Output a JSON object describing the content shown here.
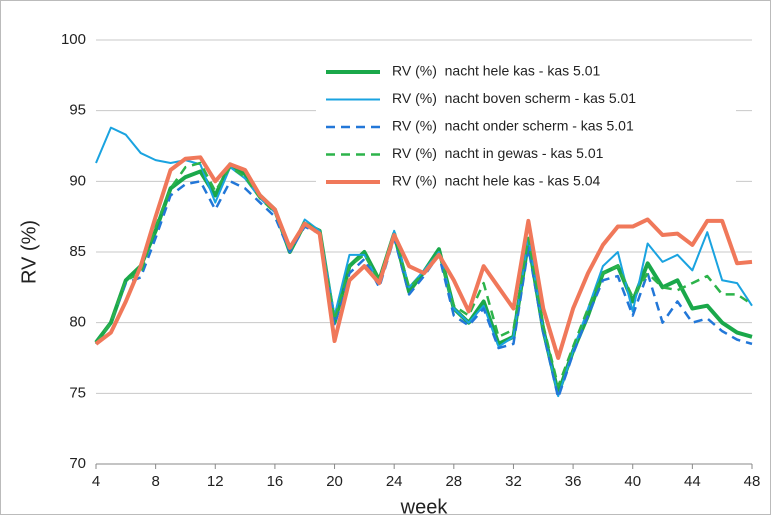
{
  "chart_data": {
    "type": "line",
    "ylabel": "RV (%)",
    "xlabel": "week",
    "x": [
      4,
      5,
      6,
      7,
      8,
      9,
      10,
      11,
      12,
      13,
      14,
      15,
      16,
      17,
      18,
      19,
      20,
      21,
      22,
      23,
      24,
      25,
      26,
      27,
      28,
      29,
      30,
      31,
      32,
      33,
      34,
      35,
      36,
      37,
      38,
      39,
      40,
      41,
      42,
      43,
      44,
      45,
      46,
      47,
      48
    ],
    "xlim": [
      4,
      48
    ],
    "xticks": [
      4,
      8,
      12,
      16,
      20,
      24,
      28,
      32,
      36,
      40,
      44,
      48
    ],
    "ylim": [
      70,
      100
    ],
    "yticks": [
      70,
      75,
      80,
      85,
      90,
      95,
      100
    ],
    "grid": true,
    "legend": "top-right",
    "series": [
      {
        "name": "RV (%)  nacht hele kas - kas 5.01",
        "color": "#1aa84a",
        "width": 4,
        "dashed": false,
        "values": [
          78.6,
          80,
          83,
          84,
          86.5,
          89.5,
          90.3,
          90.7,
          89,
          91.2,
          90.5,
          89,
          88,
          85,
          87,
          86.5,
          80,
          84,
          85,
          83,
          86.3,
          82.2,
          83.6,
          85.2,
          81,
          80,
          81.5,
          78.5,
          79,
          85.8,
          79.5,
          75,
          78,
          80.5,
          83.5,
          84,
          81.5,
          84.2,
          82.5,
          83,
          81,
          81.2,
          80,
          79.3,
          79
        ]
      },
      {
        "name": "RV (%)  nacht boven scherm - kas 5.01",
        "color": "#1aa3e0",
        "width": 2,
        "dashed": false,
        "values": [
          91.3,
          93.8,
          93.3,
          92,
          91.5,
          91.3,
          91.5,
          91.2,
          88.5,
          91,
          90.2,
          88.8,
          87.8,
          85,
          87.3,
          86.5,
          80.5,
          84.8,
          84.8,
          82.8,
          86.5,
          82.5,
          83.7,
          85,
          81,
          80,
          81.2,
          78.3,
          79,
          86,
          79.5,
          74.8,
          78,
          81,
          84,
          85,
          80.8,
          85.6,
          84.3,
          84.8,
          83.7,
          86.4,
          83,
          82.8,
          81.2
        ]
      },
      {
        "name": "RV (%)  nacht onder scherm - kas 5.01",
        "color": "#2277d8",
        "width": 2.5,
        "dashed": true,
        "values": [
          78.5,
          80,
          82.8,
          83.2,
          86,
          89,
          89.8,
          90,
          88,
          90,
          89.5,
          88.5,
          87.5,
          85,
          86.8,
          86.3,
          79.8,
          83.5,
          84.5,
          82.5,
          86,
          82,
          83.3,
          84.8,
          80.5,
          79.8,
          81,
          78.2,
          78.5,
          85.3,
          79.3,
          74.7,
          77.8,
          80.5,
          83,
          83.3,
          80.5,
          83.5,
          80,
          81.5,
          80,
          80.3,
          79.4,
          78.8,
          78.5
        ]
      },
      {
        "name": "RV (%)  nacht in gewas - kas 5.01",
        "color": "#2cb34a",
        "width": 2.5,
        "dashed": true,
        "values": [
          78.5,
          80,
          83,
          83.5,
          86.8,
          89.5,
          91,
          91.3,
          89.3,
          91,
          90.3,
          88.8,
          87.8,
          85.2,
          87.2,
          86.3,
          80.2,
          84,
          84.8,
          83,
          86.3,
          82.5,
          83.5,
          85,
          81.2,
          80.5,
          82.8,
          79,
          79.5,
          86,
          79.8,
          75.5,
          78.3,
          81,
          83.5,
          84,
          81.8,
          83.5,
          82.5,
          82.3,
          82.8,
          83.3,
          82,
          82,
          81.3
        ]
      },
      {
        "name": "RV (%)  nacht hele kas - kas 5.04",
        "color": "#f0785a",
        "width": 4,
        "dashed": false,
        "values": [
          78.5,
          79.3,
          81.5,
          84,
          87.5,
          90.8,
          91.6,
          91.7,
          90,
          91.2,
          90.8,
          89,
          88,
          85.3,
          87,
          86.3,
          78.7,
          83,
          84,
          82.8,
          86.2,
          84,
          83.5,
          84.8,
          83,
          80.8,
          84,
          82.5,
          81,
          87.2,
          81,
          77.5,
          81,
          83.5,
          85.5,
          86.8,
          86.8,
          87.3,
          86.2,
          86.3,
          85.5,
          87.2,
          87.2,
          84.2,
          84.3
        ]
      }
    ]
  }
}
